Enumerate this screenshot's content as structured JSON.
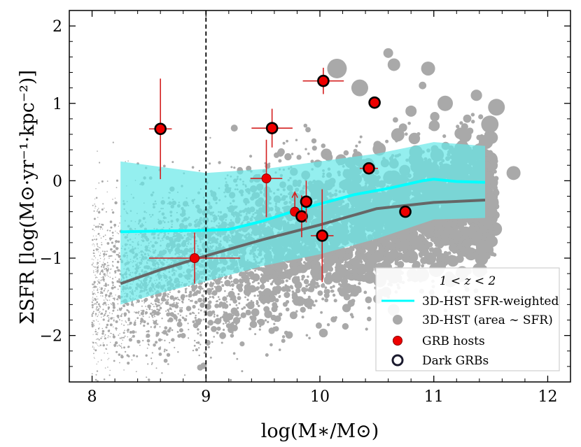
{
  "chart_data": {
    "type": "scatter",
    "xlabel": "log(M∗/M⊙)",
    "ylabel": "ΣSFR [log(M⊙·yr⁻¹·kpc⁻²)]",
    "xlim": [
      7.8,
      12.2
    ],
    "ylim": [
      -2.6,
      2.2
    ],
    "x_ticks": [
      8,
      9,
      10,
      11,
      12
    ],
    "y_ticks": [
      -2,
      -1,
      0,
      1,
      2
    ],
    "x_tick_labels": [
      "8",
      "9",
      "10",
      "11",
      "12"
    ],
    "y_tick_labels": [
      "−2",
      "−1",
      "0",
      "1",
      "2"
    ],
    "vertical_line_x": 9.0,
    "legend": {
      "title": "1 < z < 2",
      "location": "lower right",
      "entries": [
        {
          "label": "3D-HST SFR-weighted",
          "marker": "line",
          "color": "#00ffff"
        },
        {
          "label": "3D-HST (area ∼ SFR)",
          "marker": "circle",
          "color": "#a9a9a9"
        },
        {
          "label": "GRB hosts",
          "marker": "circle",
          "color": "#ee0000"
        },
        {
          "label": "Dark GRBs",
          "marker": "open-circle",
          "color": "#1a1a2e"
        }
      ]
    },
    "sfr_weighted_median": {
      "x": [
        8.25,
        8.6,
        9.0,
        9.2,
        9.5,
        9.8,
        10.0,
        10.3,
        10.6,
        10.9,
        11.0,
        11.2,
        11.45
      ],
      "y": [
        -0.66,
        -0.65,
        -0.64,
        -0.63,
        -0.52,
        -0.38,
        -0.3,
        -0.18,
        -0.1,
        0.0,
        0.02,
        -0.01,
        -0.02
      ]
    },
    "sfr_weighted_band": {
      "x": [
        8.25,
        8.6,
        9.0,
        9.5,
        10.0,
        10.5,
        11.0,
        11.45
      ],
      "upper": [
        0.25,
        0.18,
        0.1,
        0.15,
        0.25,
        0.35,
        0.5,
        0.45
      ],
      "lower": [
        -1.6,
        -1.45,
        -1.3,
        -1.1,
        -0.95,
        -0.75,
        -0.5,
        -0.48
      ]
    },
    "median_line": {
      "x": [
        8.25,
        8.6,
        9.0,
        9.5,
        10.0,
        10.5,
        11.0,
        11.45
      ],
      "y": [
        -1.33,
        -1.15,
        -0.97,
        -0.76,
        -0.57,
        -0.36,
        -0.28,
        -0.25
      ]
    },
    "grb_hosts": [
      {
        "x": 8.6,
        "y": 0.67,
        "xerr": 0.1,
        "yerr": 0.65,
        "dark": true
      },
      {
        "x": 8.9,
        "y": -1.0,
        "xerr": 0.4,
        "yerr": 0.33,
        "dark": false
      },
      {
        "x": 9.53,
        "y": 0.03,
        "xerr": 0.14,
        "yerr": 0.5,
        "dark": false
      },
      {
        "x": 9.58,
        "y": 0.68,
        "xerr": 0.18,
        "yerr": 0.25,
        "dark": true
      },
      {
        "x": 9.78,
        "y": -0.4,
        "xerr": 0.0,
        "yerr": 0.0,
        "dark": false,
        "lower_limit": true
      },
      {
        "x": 9.84,
        "y": -0.46,
        "xerr": 0.04,
        "yerr": 0.27,
        "dark": true
      },
      {
        "x": 9.88,
        "y": -0.27,
        "xerr": 0.05,
        "yerr": 0.27,
        "dark": true
      },
      {
        "x": 10.02,
        "y": -0.71,
        "xerr": 0.1,
        "yerr": 0.6,
        "dark": true
      },
      {
        "x": 10.03,
        "y": 1.29,
        "xerr": 0.18,
        "yerr": 0.17,
        "dark": true
      },
      {
        "x": 10.43,
        "y": 0.16,
        "xerr": 0.08,
        "yerr": 0.05,
        "dark": true
      },
      {
        "x": 10.48,
        "y": 1.01,
        "xerr": 0.03,
        "yerr": 0.05,
        "dark": true
      },
      {
        "x": 10.75,
        "y": -0.4,
        "xerr": 0.05,
        "yerr": 0.03,
        "dark": true
      }
    ]
  },
  "colors": {
    "band": "#66e8e8",
    "cyan_line": "#00ffff",
    "median_line": "#666666",
    "scatter": "#a9a9a9",
    "grb_fill": "#ee0000",
    "errorbar": "#d42020",
    "dark_edge": "#000000"
  }
}
